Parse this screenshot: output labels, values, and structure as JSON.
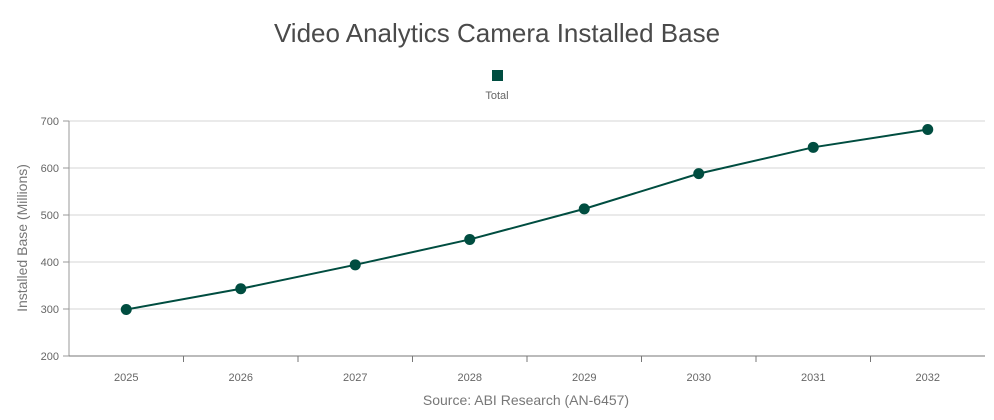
{
  "chart_data": {
    "type": "line",
    "title": "Video Analytics Camera Installed Base",
    "xlabel": "Source: ABI Research (AN-6457)",
    "ylabel": "Installed Base (Millions)",
    "categories": [
      "2025",
      "2026",
      "2027",
      "2028",
      "2029",
      "2030",
      "2031",
      "2032"
    ],
    "series": [
      {
        "name": "Total",
        "values": [
          299,
          343,
          394,
          448,
          513,
          588,
          644,
          682
        ],
        "color": "#004d40"
      }
    ],
    "ylim": [
      200,
      700
    ],
    "yticks": [
      200,
      300,
      400,
      500,
      600,
      700
    ],
    "grid": true,
    "legend": "top-center"
  }
}
